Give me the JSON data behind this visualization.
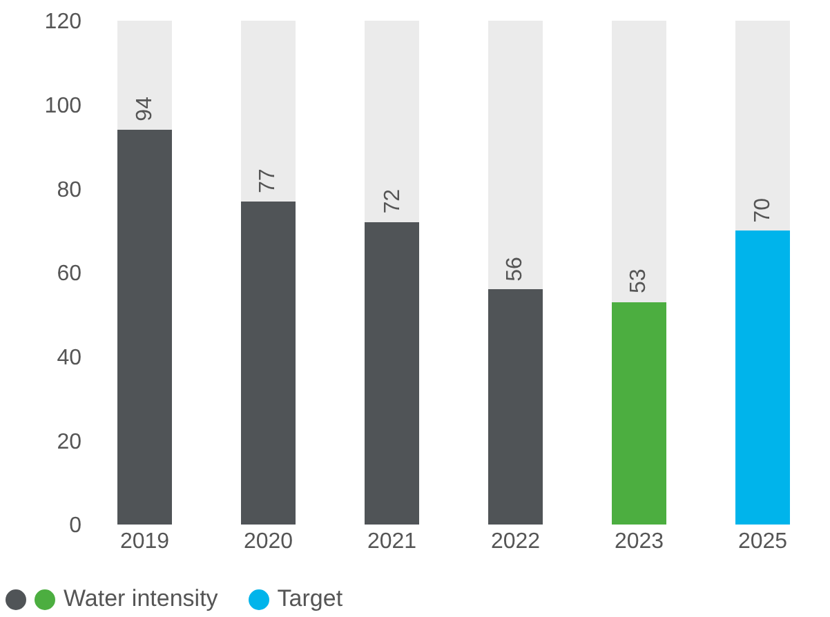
{
  "chart_data": {
    "type": "bar",
    "stacked": true,
    "categories": [
      "2019",
      "2020",
      "2021",
      "2022",
      "2023",
      "2025"
    ],
    "series": [
      {
        "name": "Water intensity",
        "colors": [
          "#505457",
          "#505457",
          "#505457",
          "#505457",
          "#4cae40",
          null
        ],
        "values": [
          94,
          77,
          72,
          56,
          53,
          null
        ],
        "value_labels": [
          "94",
          "77",
          "72",
          "56",
          "53",
          null
        ]
      },
      {
        "name": "Target",
        "color": "#00b4eb",
        "values": [
          null,
          null,
          null,
          null,
          null,
          70
        ],
        "value_labels": [
          null,
          null,
          null,
          null,
          null,
          "70"
        ]
      },
      {
        "color": "#ebebeb",
        "values": [
          26,
          43,
          48,
          64,
          67,
          50
        ]
      }
    ],
    "ylim": [
      0,
      120
    ],
    "yticks": [
      0,
      20,
      40,
      60,
      80,
      100,
      120
    ],
    "grid": false,
    "legend": "bottom left"
  }
}
